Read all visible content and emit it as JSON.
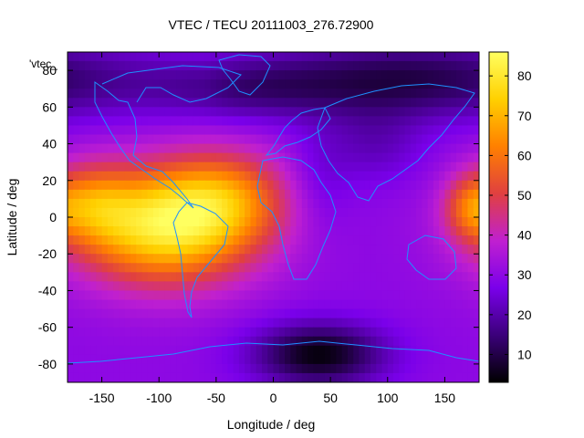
{
  "chart_data": {
    "type": "heatmap",
    "title": "VTEC / TECU 20111003_276.72900",
    "xlabel": "Longitude / deg",
    "ylabel": "Latitude / deg",
    "key_label": "'vtec_",
    "xlim": [
      -180,
      180
    ],
    "ylim": [
      -90,
      90
    ],
    "xticks": [
      -150,
      -100,
      -50,
      0,
      50,
      100,
      150
    ],
    "yticks": [
      -80,
      -60,
      -40,
      -20,
      0,
      20,
      40,
      60,
      80
    ],
    "colorbar": {
      "min": 3,
      "max": 86,
      "ticks": [
        10,
        20,
        30,
        40,
        50,
        60,
        70,
        80
      ]
    },
    "palette": [
      "#000000",
      "#3b007a",
      "#7a00ea",
      "#c020d0",
      "#e04040",
      "#ff8000",
      "#ffd000",
      "#ffff60"
    ],
    "coastline_color": "#1e90ff",
    "field": {
      "background_tecu": 30,
      "blobs": [
        {
          "lon": -95,
          "lat": -5,
          "sx": 55,
          "sy": 22,
          "amp": 50
        },
        {
          "lon": -40,
          "lat": 12,
          "sx": 40,
          "sy": 18,
          "amp": 22
        },
        {
          "lon": -160,
          "lat": 8,
          "sx": 25,
          "sy": 15,
          "amp": 20
        },
        {
          "lon": 170,
          "lat": 5,
          "sx": 15,
          "sy": 12,
          "amp": 15
        },
        {
          "lon": 40,
          "lat": -75,
          "sx": 40,
          "sy": 12,
          "amp": -26
        },
        {
          "lon": 120,
          "lat": 75,
          "sx": 90,
          "sy": 15,
          "amp": -20
        },
        {
          "lon": -30,
          "lat": 70,
          "sx": 60,
          "sy": 12,
          "amp": -12
        },
        {
          "lon": 90,
          "lat": 40,
          "sx": 30,
          "sy": 15,
          "amp": -8
        },
        {
          "lon": 40,
          "lat": 20,
          "sx": 20,
          "sy": 20,
          "amp": -6
        }
      ]
    }
  }
}
